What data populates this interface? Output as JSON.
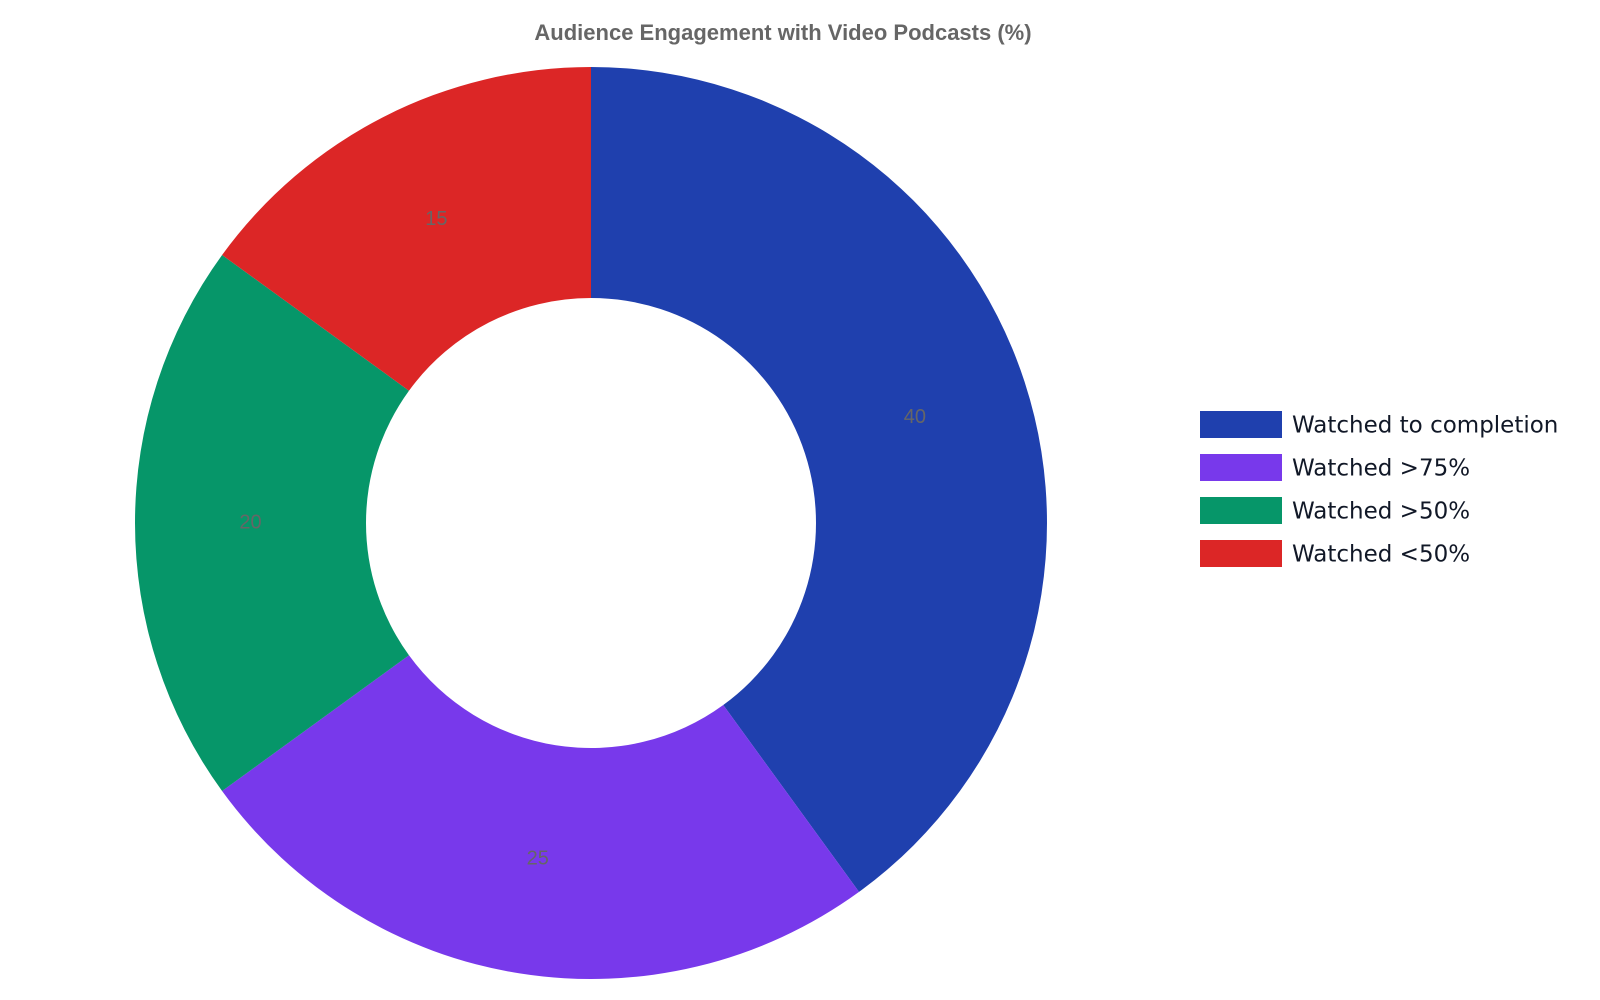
{
  "chart_data": {
    "type": "donut",
    "title": "Audience Engagement with Video Podcasts (%)",
    "categories": [
      "Watched to completion",
      "Watched >75%",
      "Watched >50%",
      "Watched <50%"
    ],
    "values": [
      40,
      25,
      20,
      15
    ],
    "colors": [
      "#1f40ae",
      "#7839eb",
      "#069669",
      "#dc2626"
    ],
    "legend": "right"
  }
}
